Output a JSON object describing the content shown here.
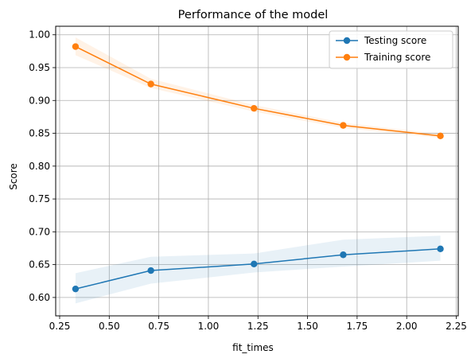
{
  "chart_data": {
    "type": "line",
    "title": "Performance of the model",
    "xlabel": "fit_times",
    "ylabel": "Score",
    "xlim": [
      0.23,
      2.26
    ],
    "ylim": [
      0.572,
      1.013
    ],
    "xticks": [
      0.25,
      0.5,
      0.75,
      1.0,
      1.25,
      1.5,
      1.75,
      2.0,
      2.25
    ],
    "xtick_labels": [
      "0.25",
      "0.50",
      "0.75",
      "1.00",
      "1.25",
      "1.50",
      "1.75",
      "2.00",
      "2.25"
    ],
    "yticks": [
      0.6,
      0.65,
      0.7,
      0.75,
      0.8,
      0.85,
      0.9,
      0.95,
      1.0
    ],
    "ytick_labels": [
      "0.60",
      "0.65",
      "0.70",
      "0.75",
      "0.80",
      "0.85",
      "0.90",
      "0.95",
      "1.00"
    ],
    "grid": true,
    "legend_position": "top-right",
    "series": [
      {
        "name": "Testing score",
        "color": "#1f77b4",
        "x": [
          0.33,
          0.71,
          1.23,
          1.68,
          2.17
        ],
        "y": [
          0.613,
          0.641,
          0.651,
          0.665,
          0.674
        ],
        "band_lower": [
          0.591,
          0.621,
          0.638,
          0.647,
          0.656
        ],
        "band_upper": [
          0.637,
          0.662,
          0.667,
          0.688,
          0.694
        ]
      },
      {
        "name": "Training score",
        "color": "#ff7f0e",
        "x": [
          0.33,
          0.71,
          1.23,
          1.68,
          2.17
        ],
        "y": [
          0.982,
          0.925,
          0.888,
          0.862,
          0.846
        ],
        "band_lower": [
          0.969,
          0.919,
          0.883,
          0.858,
          0.843
        ],
        "band_upper": [
          0.996,
          0.933,
          0.893,
          0.866,
          0.849
        ]
      }
    ]
  }
}
